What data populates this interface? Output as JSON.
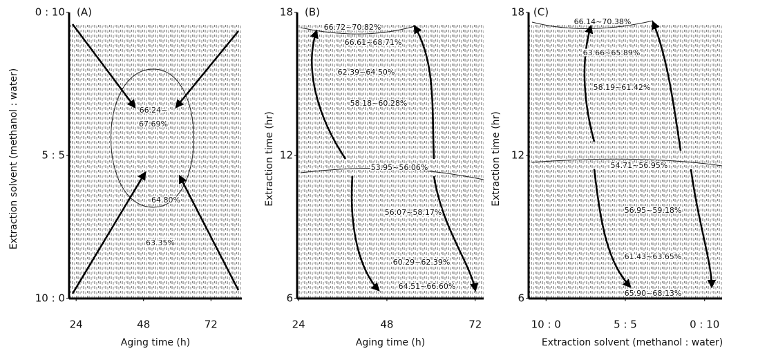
{
  "chart_data": [
    {
      "type": "contour",
      "panel_label": "(A)",
      "x_label": "Aging time (h)",
      "y_label": "Extraction solvent (methanol : water)",
      "xlim": [
        21.5,
        83
      ],
      "xticks": [
        24,
        48,
        72
      ],
      "ylim": [
        10,
        0
      ],
      "yticks": [
        {
          "value": 0,
          "label": "0 : 10"
        },
        {
          "value": 5,
          "label": "5 : 5"
        },
        {
          "value": 10,
          "label": "10 : 0"
        }
      ],
      "annotations": [
        "66.24~",
        "67.69%",
        "64.80%",
        "63.35%"
      ]
    },
    {
      "type": "contour",
      "panel_label": "(B)",
      "x_label": "Aging time (h)",
      "y_label": "Extraction time (hr)",
      "xlim": [
        23.6,
        74.3
      ],
      "xticks": [
        24,
        48,
        72
      ],
      "ylim": [
        6,
        18
      ],
      "yticks": [
        6,
        12,
        18
      ],
      "annotations": [
        "66.72~70.82%",
        "66.61~68.71%",
        "62.39~64.50%",
        "58.18~60.28%",
        "53.95~56.06%",
        "56.07~58.17%",
        "60.29~62.39%",
        "64.51~66.60%"
      ]
    },
    {
      "type": "contour",
      "panel_label": "(C)",
      "x_label": "Extraction solvent (methanol : water)",
      "y_label": "Extraction time (hr)",
      "xlim": [
        -1.1,
        11.1
      ],
      "xticks": [
        {
          "value": 0,
          "label": "10 : 0"
        },
        {
          "value": 5,
          "label": "5 : 5"
        },
        {
          "value": 10,
          "label": "0 : 10"
        }
      ],
      "ylim": [
        6,
        18
      ],
      "yticks": [
        6,
        12,
        18
      ],
      "annotations": [
        "66.14~70.38%",
        "63.66~65.89%",
        "58.19~61.42%",
        "54.71~56.95%",
        "56.95~59.18%",
        "61.43~63.65%",
        "65.90~68.13%"
      ]
    }
  ]
}
